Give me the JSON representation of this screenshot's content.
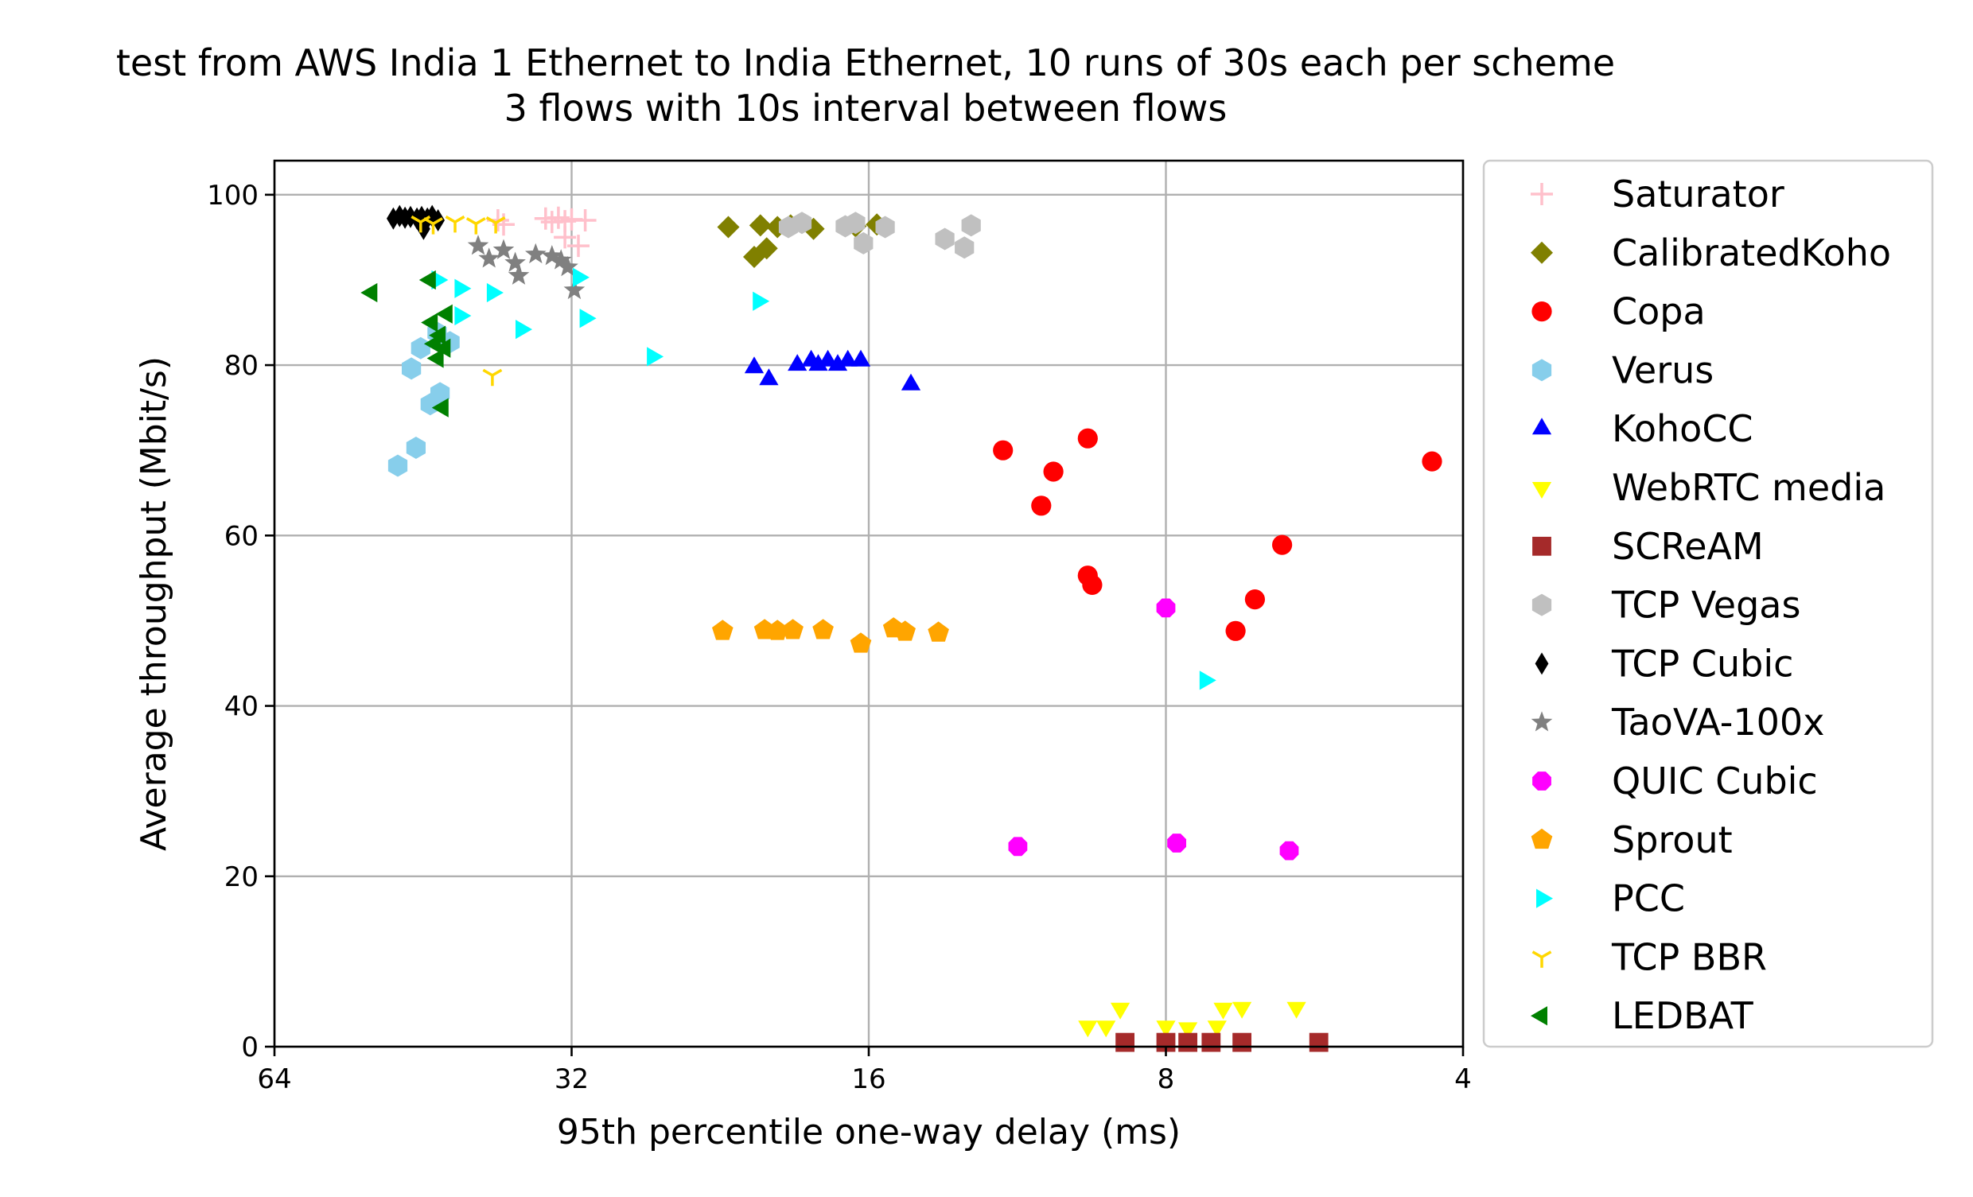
{
  "chart_data": {
    "type": "scatter",
    "title": [
      "test from AWS India 1 Ethernet to India Ethernet, 10 runs of 30s each per scheme",
      "3 flows with 10s interval between flows"
    ],
    "xlabel": "95th percentile one-way delay (ms)",
    "ylabel": "Average throughput (Mbit/s)",
    "x_scale": "log2",
    "x_inverted": true,
    "xlim": [
      64,
      4
    ],
    "ylim": [
      0,
      104
    ],
    "x_ticks": [
      64,
      32,
      16,
      8,
      4
    ],
    "y_ticks": [
      0,
      20,
      40,
      60,
      80,
      100
    ],
    "grid": true,
    "legend_position": "outside-right",
    "series": [
      {
        "name": "Saturator",
        "marker": "plus",
        "color": "#ffc0cb",
        "points": [
          [
            38.0,
            97.0
          ],
          [
            37.5,
            96.5
          ],
          [
            34.0,
            97.2
          ],
          [
            33.5,
            96.8
          ],
          [
            33.0,
            97.3
          ],
          [
            32.5,
            96.9
          ],
          [
            32.0,
            97.1
          ],
          [
            32.5,
            95.0
          ],
          [
            31.5,
            94.0
          ],
          [
            31.0,
            97.0
          ]
        ]
      },
      {
        "name": "CalibratedKoho",
        "marker": "diamond",
        "color": "#808000",
        "points": [
          [
            22.2,
            96.2
          ],
          [
            20.9,
            92.7
          ],
          [
            20.6,
            96.4
          ],
          [
            20.3,
            93.7
          ],
          [
            19.8,
            96.2
          ],
          [
            19.2,
            96.4
          ],
          [
            18.2,
            96.0
          ],
          [
            16.5,
            96.3
          ],
          [
            15.7,
            96.5
          ]
        ]
      },
      {
        "name": "Copa",
        "marker": "circle",
        "color": "#ff0000",
        "points": [
          [
            11.7,
            70.0
          ],
          [
            10.7,
            63.5
          ],
          [
            10.4,
            67.5
          ],
          [
            9.6,
            71.4
          ],
          [
            9.6,
            55.3
          ],
          [
            9.5,
            54.2
          ],
          [
            6.8,
            48.8
          ],
          [
            6.5,
            52.5
          ],
          [
            6.1,
            58.9
          ],
          [
            4.3,
            68.7
          ]
        ]
      },
      {
        "name": "Verus",
        "marker": "hexagon",
        "color": "#87ceeb",
        "points": [
          [
            48.0,
            68.2
          ],
          [
            46.0,
            70.3
          ],
          [
            46.5,
            79.6
          ],
          [
            45.5,
            82.0
          ],
          [
            44.5,
            75.4
          ],
          [
            43.5,
            76.7
          ],
          [
            43.8,
            83.8
          ],
          [
            42.5,
            82.7
          ]
        ]
      },
      {
        "name": "KohoCC",
        "marker": "triangle-up",
        "color": "#0000ff",
        "points": [
          [
            20.9,
            79.7
          ],
          [
            20.2,
            78.3
          ],
          [
            18.9,
            80.0
          ],
          [
            18.3,
            80.5
          ],
          [
            18.0,
            80.0
          ],
          [
            17.6,
            80.5
          ],
          [
            17.2,
            80.0
          ],
          [
            16.8,
            80.5
          ],
          [
            16.3,
            80.5
          ],
          [
            14.5,
            77.7
          ]
        ]
      },
      {
        "name": "WebRTC media",
        "marker": "triangle-down",
        "color": "#ffff00",
        "points": [
          [
            9.6,
            2.4
          ],
          [
            9.2,
            2.4
          ],
          [
            8.9,
            4.5
          ],
          [
            8.0,
            2.4
          ],
          [
            7.6,
            2.2
          ],
          [
            7.1,
            2.4
          ],
          [
            7.0,
            4.5
          ],
          [
            6.7,
            4.6
          ],
          [
            5.9,
            4.6
          ]
        ]
      },
      {
        "name": "SCReAM",
        "marker": "square",
        "color": "#a52a2a",
        "points": [
          [
            8.8,
            0.5
          ],
          [
            8.0,
            0.5
          ],
          [
            7.6,
            0.5
          ],
          [
            7.2,
            0.5
          ],
          [
            6.7,
            0.5
          ],
          [
            5.6,
            0.5
          ]
        ]
      },
      {
        "name": "TCP Vegas",
        "marker": "hexagon",
        "color": "#c0c0c0",
        "points": [
          [
            19.3,
            96.2
          ],
          [
            18.7,
            96.7
          ],
          [
            16.9,
            96.3
          ],
          [
            16.5,
            96.7
          ],
          [
            16.2,
            94.3
          ],
          [
            15.4,
            96.2
          ],
          [
            13.4,
            94.8
          ],
          [
            12.8,
            93.8
          ],
          [
            12.6,
            96.4
          ]
        ]
      },
      {
        "name": "TCP Cubic",
        "marker": "thin-diamond",
        "color": "#000000",
        "points": [
          [
            48.5,
            97.2
          ],
          [
            47.8,
            97.5
          ],
          [
            47.2,
            97.3
          ],
          [
            46.6,
            97.4
          ],
          [
            45.9,
            97.2
          ],
          [
            45.4,
            97.4
          ],
          [
            44.8,
            97.2
          ],
          [
            44.3,
            97.5
          ],
          [
            43.7,
            97.0
          ],
          [
            45.2,
            96.0
          ]
        ]
      },
      {
        "name": "TaoVA-100x",
        "marker": "star",
        "color": "#808080",
        "points": [
          [
            39.8,
            94.0
          ],
          [
            38.8,
            92.5
          ],
          [
            37.5,
            93.5
          ],
          [
            36.5,
            92.0
          ],
          [
            36.2,
            90.5
          ],
          [
            34.8,
            93.0
          ],
          [
            33.5,
            92.8
          ],
          [
            32.8,
            92.3
          ],
          [
            32.3,
            91.5
          ],
          [
            31.8,
            88.8
          ]
        ]
      },
      {
        "name": "QUIC Cubic",
        "marker": "octagon",
        "color": "#ff00ff",
        "points": [
          [
            11.3,
            23.5
          ],
          [
            8.0,
            51.5
          ],
          [
            7.8,
            23.9
          ],
          [
            6.0,
            23.0
          ]
        ]
      },
      {
        "name": "Sprout",
        "marker": "pentagon",
        "color": "#ffa500",
        "points": [
          [
            22.5,
            48.8
          ],
          [
            20.4,
            48.9
          ],
          [
            19.8,
            48.8
          ],
          [
            19.1,
            48.9
          ],
          [
            17.8,
            48.9
          ],
          [
            16.3,
            47.3
          ],
          [
            15.1,
            49.1
          ],
          [
            14.7,
            48.7
          ],
          [
            13.6,
            48.6
          ]
        ]
      },
      {
        "name": "PCC",
        "marker": "triangle-right",
        "color": "#00ffff",
        "points": [
          [
            43.8,
            90.0
          ],
          [
            41.5,
            89.0
          ],
          [
            41.5,
            85.8
          ],
          [
            38.5,
            88.5
          ],
          [
            36.0,
            84.2
          ],
          [
            31.5,
            90.3
          ],
          [
            31.0,
            85.5
          ],
          [
            26.5,
            81.0
          ],
          [
            20.7,
            87.5
          ],
          [
            7.3,
            43.0
          ]
        ]
      },
      {
        "name": "TCP BBR",
        "marker": "tri-down",
        "color": "#ffd700",
        "points": [
          [
            45.5,
            96.8
          ],
          [
            44.2,
            96.6
          ],
          [
            42.0,
            96.8
          ],
          [
            40.0,
            96.6
          ],
          [
            38.2,
            96.7
          ],
          [
            38.5,
            78.8
          ]
        ]
      },
      {
        "name": "LEDBAT",
        "marker": "triangle-left",
        "color": "#008000",
        "points": [
          [
            51.0,
            88.5
          ],
          [
            44.5,
            90.0
          ],
          [
            44.3,
            85.0
          ],
          [
            44.0,
            82.5
          ],
          [
            43.7,
            80.8
          ],
          [
            43.5,
            83.5
          ],
          [
            43.2,
            75.0
          ],
          [
            43.0,
            82.0
          ],
          [
            42.8,
            86.0
          ]
        ]
      }
    ]
  }
}
